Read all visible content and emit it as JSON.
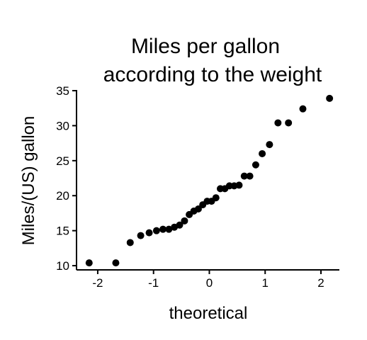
{
  "chart_data": {
    "type": "scatter",
    "title": [
      "Miles per gallon",
      "according to the weight"
    ],
    "xlabel": "theoretical",
    "ylabel": "Miles/(US) gallon",
    "color": "#000000",
    "x": [
      -2.154,
      -1.676,
      -1.418,
      -1.23,
      -1.078,
      -0.947,
      -0.831,
      -0.725,
      -0.626,
      -0.533,
      -0.445,
      -0.36,
      -0.278,
      -0.197,
      -0.118,
      -0.039,
      0.039,
      0.118,
      0.197,
      0.278,
      0.36,
      0.445,
      0.533,
      0.626,
      0.725,
      0.831,
      0.947,
      1.078,
      1.23,
      1.418,
      1.676,
      2.154
    ],
    "values": [
      10.4,
      10.4,
      13.3,
      14.3,
      14.7,
      15.0,
      15.2,
      15.2,
      15.5,
      15.8,
      16.4,
      17.3,
      17.8,
      18.1,
      18.7,
      19.2,
      19.2,
      19.7,
      21.0,
      21.0,
      21.4,
      21.4,
      21.5,
      22.8,
      22.8,
      24.4,
      26.0,
      27.3,
      30.4,
      30.4,
      32.4,
      33.9
    ],
    "xlim": [
      -2.38,
      2.33
    ],
    "ylim": [
      9.4,
      35.1
    ],
    "xticks": [
      -2,
      -1,
      0,
      1,
      2
    ],
    "yticks": [
      10,
      15,
      20,
      25,
      30,
      35
    ]
  }
}
